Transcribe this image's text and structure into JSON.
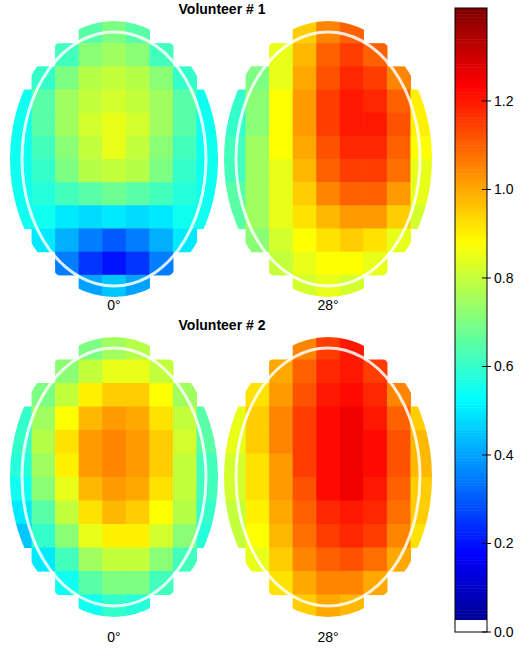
{
  "chart_data": {
    "type": "heatmap",
    "panels": [
      {
        "title": "Volunteer # 1",
        "images": [
          {
            "label": "0°",
            "cells": [
              [
                null,
                null,
                null,
                0.65,
                0.7,
                0.65,
                null,
                null,
                null
              ],
              [
                null,
                null,
                0.62,
                0.72,
                0.75,
                0.72,
                0.62,
                null,
                null
              ],
              [
                null,
                0.6,
                0.7,
                0.78,
                0.8,
                0.78,
                0.72,
                0.6,
                null
              ],
              [
                0.55,
                0.65,
                0.75,
                0.8,
                0.82,
                0.8,
                0.75,
                0.65,
                0.55
              ],
              [
                0.55,
                0.65,
                0.75,
                0.82,
                0.85,
                0.82,
                0.75,
                0.65,
                0.55
              ],
              [
                0.55,
                0.62,
                0.72,
                0.8,
                0.85,
                0.8,
                0.72,
                0.62,
                0.55
              ],
              [
                0.55,
                0.6,
                0.7,
                0.78,
                0.8,
                0.78,
                0.7,
                0.6,
                0.55
              ],
              [
                0.55,
                0.58,
                0.62,
                0.65,
                0.68,
                0.65,
                0.62,
                0.58,
                0.55
              ],
              [
                0.55,
                0.55,
                0.5,
                0.48,
                0.5,
                0.48,
                0.5,
                0.55,
                0.55
              ],
              [
                null,
                0.5,
                0.42,
                0.35,
                0.3,
                0.35,
                0.42,
                0.5,
                null
              ],
              [
                null,
                null,
                0.35,
                0.25,
                0.2,
                0.25,
                0.35,
                null,
                null
              ],
              [
                null,
                null,
                null,
                0.4,
                0.45,
                0.4,
                null,
                null,
                null
              ]
            ]
          },
          {
            "label": "28°",
            "cells": [
              [
                null,
                null,
                null,
                0.95,
                1.05,
                1.1,
                null,
                null,
                null
              ],
              [
                null,
                null,
                0.85,
                0.98,
                1.1,
                1.15,
                1.1,
                null,
                null
              ],
              [
                null,
                0.7,
                0.85,
                1.0,
                1.12,
                1.18,
                1.15,
                1.05,
                null
              ],
              [
                0.6,
                0.72,
                0.88,
                1.02,
                1.15,
                1.2,
                1.18,
                1.1,
                0.9
              ],
              [
                0.6,
                0.72,
                0.88,
                1.02,
                1.15,
                1.2,
                1.2,
                1.12,
                0.9
              ],
              [
                0.62,
                0.75,
                0.88,
                1.0,
                1.12,
                1.18,
                1.18,
                1.1,
                0.88
              ],
              [
                0.62,
                0.75,
                0.85,
                0.98,
                1.1,
                1.15,
                1.15,
                1.08,
                0.85
              ],
              [
                0.65,
                0.75,
                0.85,
                0.95,
                1.05,
                1.1,
                1.1,
                1.02,
                0.85
              ],
              [
                0.65,
                0.75,
                0.85,
                0.92,
                0.98,
                1.02,
                1.02,
                0.95,
                0.82
              ],
              [
                null,
                0.72,
                0.82,
                0.88,
                0.92,
                0.95,
                0.92,
                0.85,
                null
              ],
              [
                null,
                null,
                0.8,
                0.85,
                0.88,
                0.88,
                0.85,
                null,
                null
              ],
              [
                null,
                null,
                null,
                0.82,
                0.85,
                0.82,
                null,
                null,
                null
              ]
            ]
          }
        ]
      },
      {
        "title": "Volunteer # 2",
        "images": [
          {
            "label": "0°",
            "cells": [
              [
                null,
                null,
                null,
                0.7,
                0.75,
                0.78,
                null,
                null,
                null
              ],
              [
                null,
                null,
                0.72,
                0.8,
                0.85,
                0.85,
                0.8,
                null,
                null
              ],
              [
                null,
                0.7,
                0.8,
                0.9,
                0.95,
                0.95,
                0.88,
                0.75,
                null
              ],
              [
                0.6,
                0.75,
                0.88,
                0.98,
                1.02,
                1.0,
                0.92,
                0.8,
                0.65
              ],
              [
                0.6,
                0.78,
                0.92,
                1.02,
                1.05,
                1.02,
                0.95,
                0.82,
                0.65
              ],
              [
                0.58,
                0.75,
                0.9,
                1.02,
                1.05,
                1.02,
                0.95,
                0.8,
                0.62
              ],
              [
                0.55,
                0.72,
                0.85,
                0.98,
                1.02,
                1.0,
                0.92,
                0.8,
                0.62
              ],
              [
                0.5,
                0.65,
                0.8,
                0.92,
                0.98,
                0.95,
                0.88,
                0.78,
                0.6
              ],
              [
                0.45,
                0.6,
                0.72,
                0.85,
                0.9,
                0.9,
                0.82,
                0.72,
                0.58
              ],
              [
                null,
                0.5,
                0.62,
                0.75,
                0.8,
                0.8,
                0.72,
                0.62,
                null
              ],
              [
                null,
                null,
                0.55,
                0.65,
                0.7,
                0.7,
                0.62,
                null,
                null
              ],
              [
                null,
                null,
                null,
                0.55,
                0.6,
                0.58,
                null,
                null,
                null
              ]
            ]
          },
          {
            "label": "28°",
            "cells": [
              [
                null,
                null,
                null,
                1.05,
                1.15,
                1.2,
                null,
                null,
                null
              ],
              [
                null,
                null,
                1.0,
                1.1,
                1.18,
                1.2,
                1.15,
                null,
                null
              ],
              [
                null,
                0.92,
                1.02,
                1.12,
                1.2,
                1.22,
                1.18,
                1.05,
                null
              ],
              [
                0.85,
                0.95,
                1.05,
                1.15,
                1.22,
                1.25,
                1.2,
                1.1,
                0.95
              ],
              [
                0.85,
                0.95,
                1.05,
                1.15,
                1.22,
                1.25,
                1.22,
                1.12,
                0.98
              ],
              [
                0.82,
                0.92,
                1.02,
                1.15,
                1.22,
                1.25,
                1.22,
                1.12,
                0.98
              ],
              [
                0.82,
                0.92,
                1.02,
                1.12,
                1.22,
                1.25,
                1.2,
                1.1,
                0.95
              ],
              [
                0.8,
                0.9,
                1.0,
                1.1,
                1.18,
                1.2,
                1.18,
                1.08,
                0.95
              ],
              [
                0.8,
                0.88,
                0.98,
                1.08,
                1.15,
                1.18,
                1.15,
                1.05,
                0.92
              ],
              [
                null,
                0.85,
                0.95,
                1.05,
                1.1,
                1.12,
                1.08,
                1.0,
                null
              ],
              [
                null,
                null,
                0.92,
                1.0,
                1.05,
                1.05,
                1.0,
                null,
                null
              ],
              [
                null,
                null,
                null,
                0.95,
                1.0,
                0.98,
                null,
                null,
                null
              ]
            ]
          }
        ]
      }
    ],
    "colorbar": {
      "range": [
        0,
        1.41
      ],
      "ticks": [
        {
          "value": 0,
          "label": "0.0"
        },
        0.2,
        0.4,
        0.6,
        0.8,
        {
          "value": 1,
          "label": "1.0"
        },
        1.2
      ]
    }
  }
}
